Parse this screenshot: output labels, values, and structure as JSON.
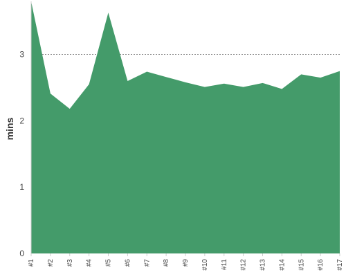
{
  "chart_data": {
    "type": "area",
    "xlabel": "",
    "ylabel": "mins",
    "ylim": [
      0,
      3.8
    ],
    "yticks": [
      0,
      1,
      2,
      3
    ],
    "grid": true,
    "categories": [
      "#1",
      "#2",
      "#3",
      "#4",
      "#5",
      "#6",
      "#7",
      "#8",
      "#9",
      "#10",
      "#11",
      "#12",
      "#13",
      "#14",
      "#15",
      "#16",
      "#17"
    ],
    "series": [
      {
        "values": [
          3.85,
          2.41,
          2.18,
          2.55,
          3.63,
          2.6,
          2.74,
          2.66,
          2.58,
          2.51,
          2.56,
          2.51,
          2.57,
          2.48,
          2.7,
          2.65,
          2.75
        ],
        "color": "#449b6a"
      }
    ],
    "gridline_color": "#555555"
  }
}
